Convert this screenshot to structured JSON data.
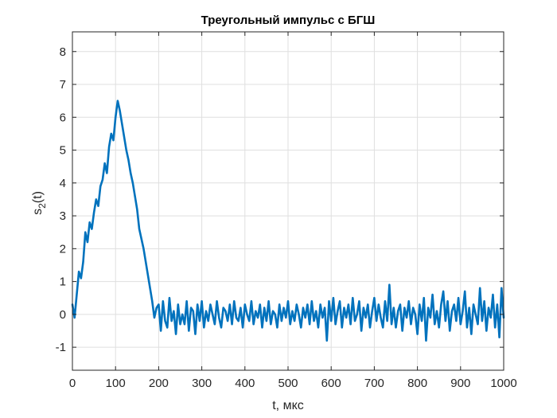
{
  "chart_data": {
    "type": "line",
    "title": "Треугольный импульс с БГШ",
    "xlabel": "t, мкс",
    "ylabel_main": "s",
    "ylabel_sub": "2",
    "ylabel_suffix": "(t)",
    "xlim": [
      0,
      1000
    ],
    "ylim": [
      -1.7,
      8.6
    ],
    "xticks": [
      0,
      100,
      200,
      300,
      400,
      500,
      600,
      700,
      800,
      900,
      1000
    ],
    "yticks": [
      -1,
      0,
      1,
      2,
      3,
      4,
      5,
      6,
      7,
      8
    ],
    "grid": true,
    "legend": "none",
    "colors": {
      "line": "#0072BD",
      "axis": "#262626",
      "grid": "#DFDFDF"
    },
    "series": [
      {
        "color": "#0072BD",
        "x": [
          0,
          5,
          10,
          15,
          20,
          25,
          30,
          35,
          40,
          45,
          50,
          55,
          60,
          65,
          70,
          75,
          80,
          85,
          90,
          95,
          100,
          105,
          110,
          115,
          120,
          125,
          130,
          135,
          140,
          145,
          150,
          155,
          160,
          165,
          170,
          175,
          180,
          185,
          190,
          195,
          200,
          205,
          210,
          215,
          220,
          225,
          230,
          235,
          240,
          245,
          250,
          255,
          260,
          265,
          270,
          275,
          280,
          285,
          290,
          295,
          300,
          305,
          310,
          315,
          320,
          325,
          330,
          335,
          340,
          345,
          350,
          355,
          360,
          365,
          370,
          375,
          380,
          385,
          390,
          395,
          400,
          405,
          410,
          415,
          420,
          425,
          430,
          435,
          440,
          445,
          450,
          455,
          460,
          465,
          470,
          475,
          480,
          485,
          490,
          495,
          500,
          505,
          510,
          515,
          520,
          525,
          530,
          535,
          540,
          545,
          550,
          555,
          560,
          565,
          570,
          575,
          580,
          585,
          590,
          595,
          600,
          605,
          610,
          615,
          620,
          625,
          630,
          635,
          640,
          645,
          650,
          655,
          660,
          665,
          670,
          675,
          680,
          685,
          690,
          695,
          700,
          705,
          710,
          715,
          720,
          725,
          730,
          735,
          740,
          745,
          750,
          755,
          760,
          765,
          770,
          775,
          780,
          785,
          790,
          795,
          800,
          805,
          810,
          815,
          820,
          825,
          830,
          835,
          840,
          845,
          850,
          855,
          860,
          865,
          870,
          875,
          880,
          885,
          890,
          895,
          900,
          905,
          910,
          915,
          920,
          925,
          930,
          935,
          940,
          945,
          950,
          955,
          960,
          965,
          970,
          975,
          980,
          985,
          990,
          995,
          1000
        ],
        "y": [
          0.3,
          -0.1,
          0.6,
          1.3,
          1.1,
          1.6,
          2.5,
          2.2,
          2.8,
          2.6,
          3.1,
          3.5,
          3.3,
          3.9,
          4.1,
          4.6,
          4.3,
          5.1,
          5.5,
          5.3,
          6.0,
          6.5,
          6.2,
          5.8,
          5.4,
          5.0,
          4.7,
          4.3,
          4.0,
          3.6,
          3.2,
          2.6,
          2.3,
          2.0,
          1.6,
          1.2,
          0.8,
          0.4,
          -0.1,
          0.2,
          0.3,
          -0.5,
          0.4,
          -0.2,
          -0.4,
          0.5,
          -0.2,
          0.1,
          -0.6,
          0.3,
          -0.3,
          0.0,
          -0.3,
          0.4,
          -0.5,
          0.2,
          0.1,
          -0.6,
          0.3,
          -0.2,
          0.4,
          -0.4,
          0.1,
          -0.2,
          0.3,
          0.0,
          -0.3,
          0.4,
          -0.1,
          -0.4,
          0.2,
          0.1,
          -0.2,
          0.3,
          -0.3,
          0.4,
          -0.1,
          -0.2,
          0.2,
          -0.4,
          0.3,
          0.0,
          -0.2,
          0.4,
          -0.3,
          0.1,
          -0.1,
          0.3,
          -0.4,
          0.2,
          -0.2,
          0.4,
          -0.3,
          0.1,
          0.0,
          -0.4,
          0.3,
          -0.2,
          0.2,
          -0.1,
          0.4,
          -0.3,
          0.1,
          -0.2,
          0.3,
          0.0,
          -0.4,
          0.2,
          -0.1,
          0.3,
          -0.3,
          0.4,
          -0.2,
          0.1,
          -0.4,
          0.3,
          -0.1,
          0.2,
          -0.8,
          0.4,
          -0.2,
          0.5,
          -0.3,
          0.1,
          0.4,
          -0.4,
          0.2,
          -0.1,
          0.3,
          -0.3,
          0.5,
          -0.2,
          0.0,
          0.4,
          -0.5,
          0.2,
          -0.1,
          0.3,
          -0.4,
          0.1,
          0.5,
          -0.2,
          0.3,
          -0.1,
          -0.4,
          0.4,
          -0.2,
          0.9,
          -0.3,
          0.2,
          -0.4,
          0.1,
          0.3,
          -0.5,
          0.2,
          -0.1,
          0.4,
          -0.3,
          0.2,
          0.0,
          -0.6,
          0.3,
          -0.2,
          0.5,
          -0.8,
          0.2,
          -0.1,
          0.6,
          -0.3,
          0.1,
          -0.4,
          0.3,
          0.7,
          -0.2,
          0.4,
          -0.5,
          0.1,
          0.3,
          -0.2,
          0.5,
          -0.3,
          0.1,
          0.7,
          -0.4,
          0.2,
          -0.6,
          0.3,
          0.0,
          -0.3,
          0.8,
          -0.2,
          0.4,
          -0.5,
          0.2,
          -0.1,
          0.6,
          -0.4,
          0.3,
          -0.7,
          0.8,
          -0.1
        ]
      }
    ]
  }
}
